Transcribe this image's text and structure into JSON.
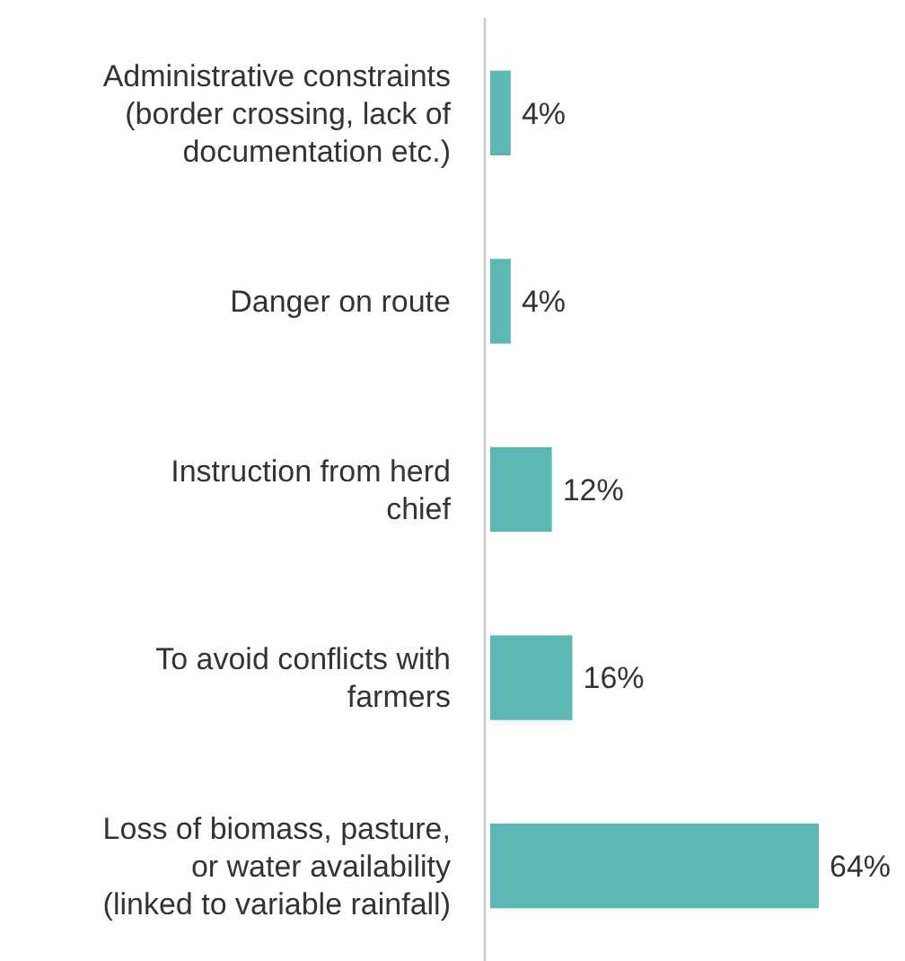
{
  "chart_data": {
    "type": "bar",
    "orientation": "horizontal",
    "categories": [
      "Administrative constraints\n(border crossing, lack of\ndocumentation etc.)",
      "Danger on route",
      "Instruction from herd\nchief",
      "To avoid conflicts with\nfarmers",
      "Loss of biomass, pasture,\nor water availability\n(linked to variable rainfall)"
    ],
    "values": [
      4,
      4,
      12,
      16,
      64
    ],
    "value_labels": [
      "4%",
      "4%",
      "12%",
      "16%",
      "64%"
    ],
    "color": "#5bb8b2"
  }
}
